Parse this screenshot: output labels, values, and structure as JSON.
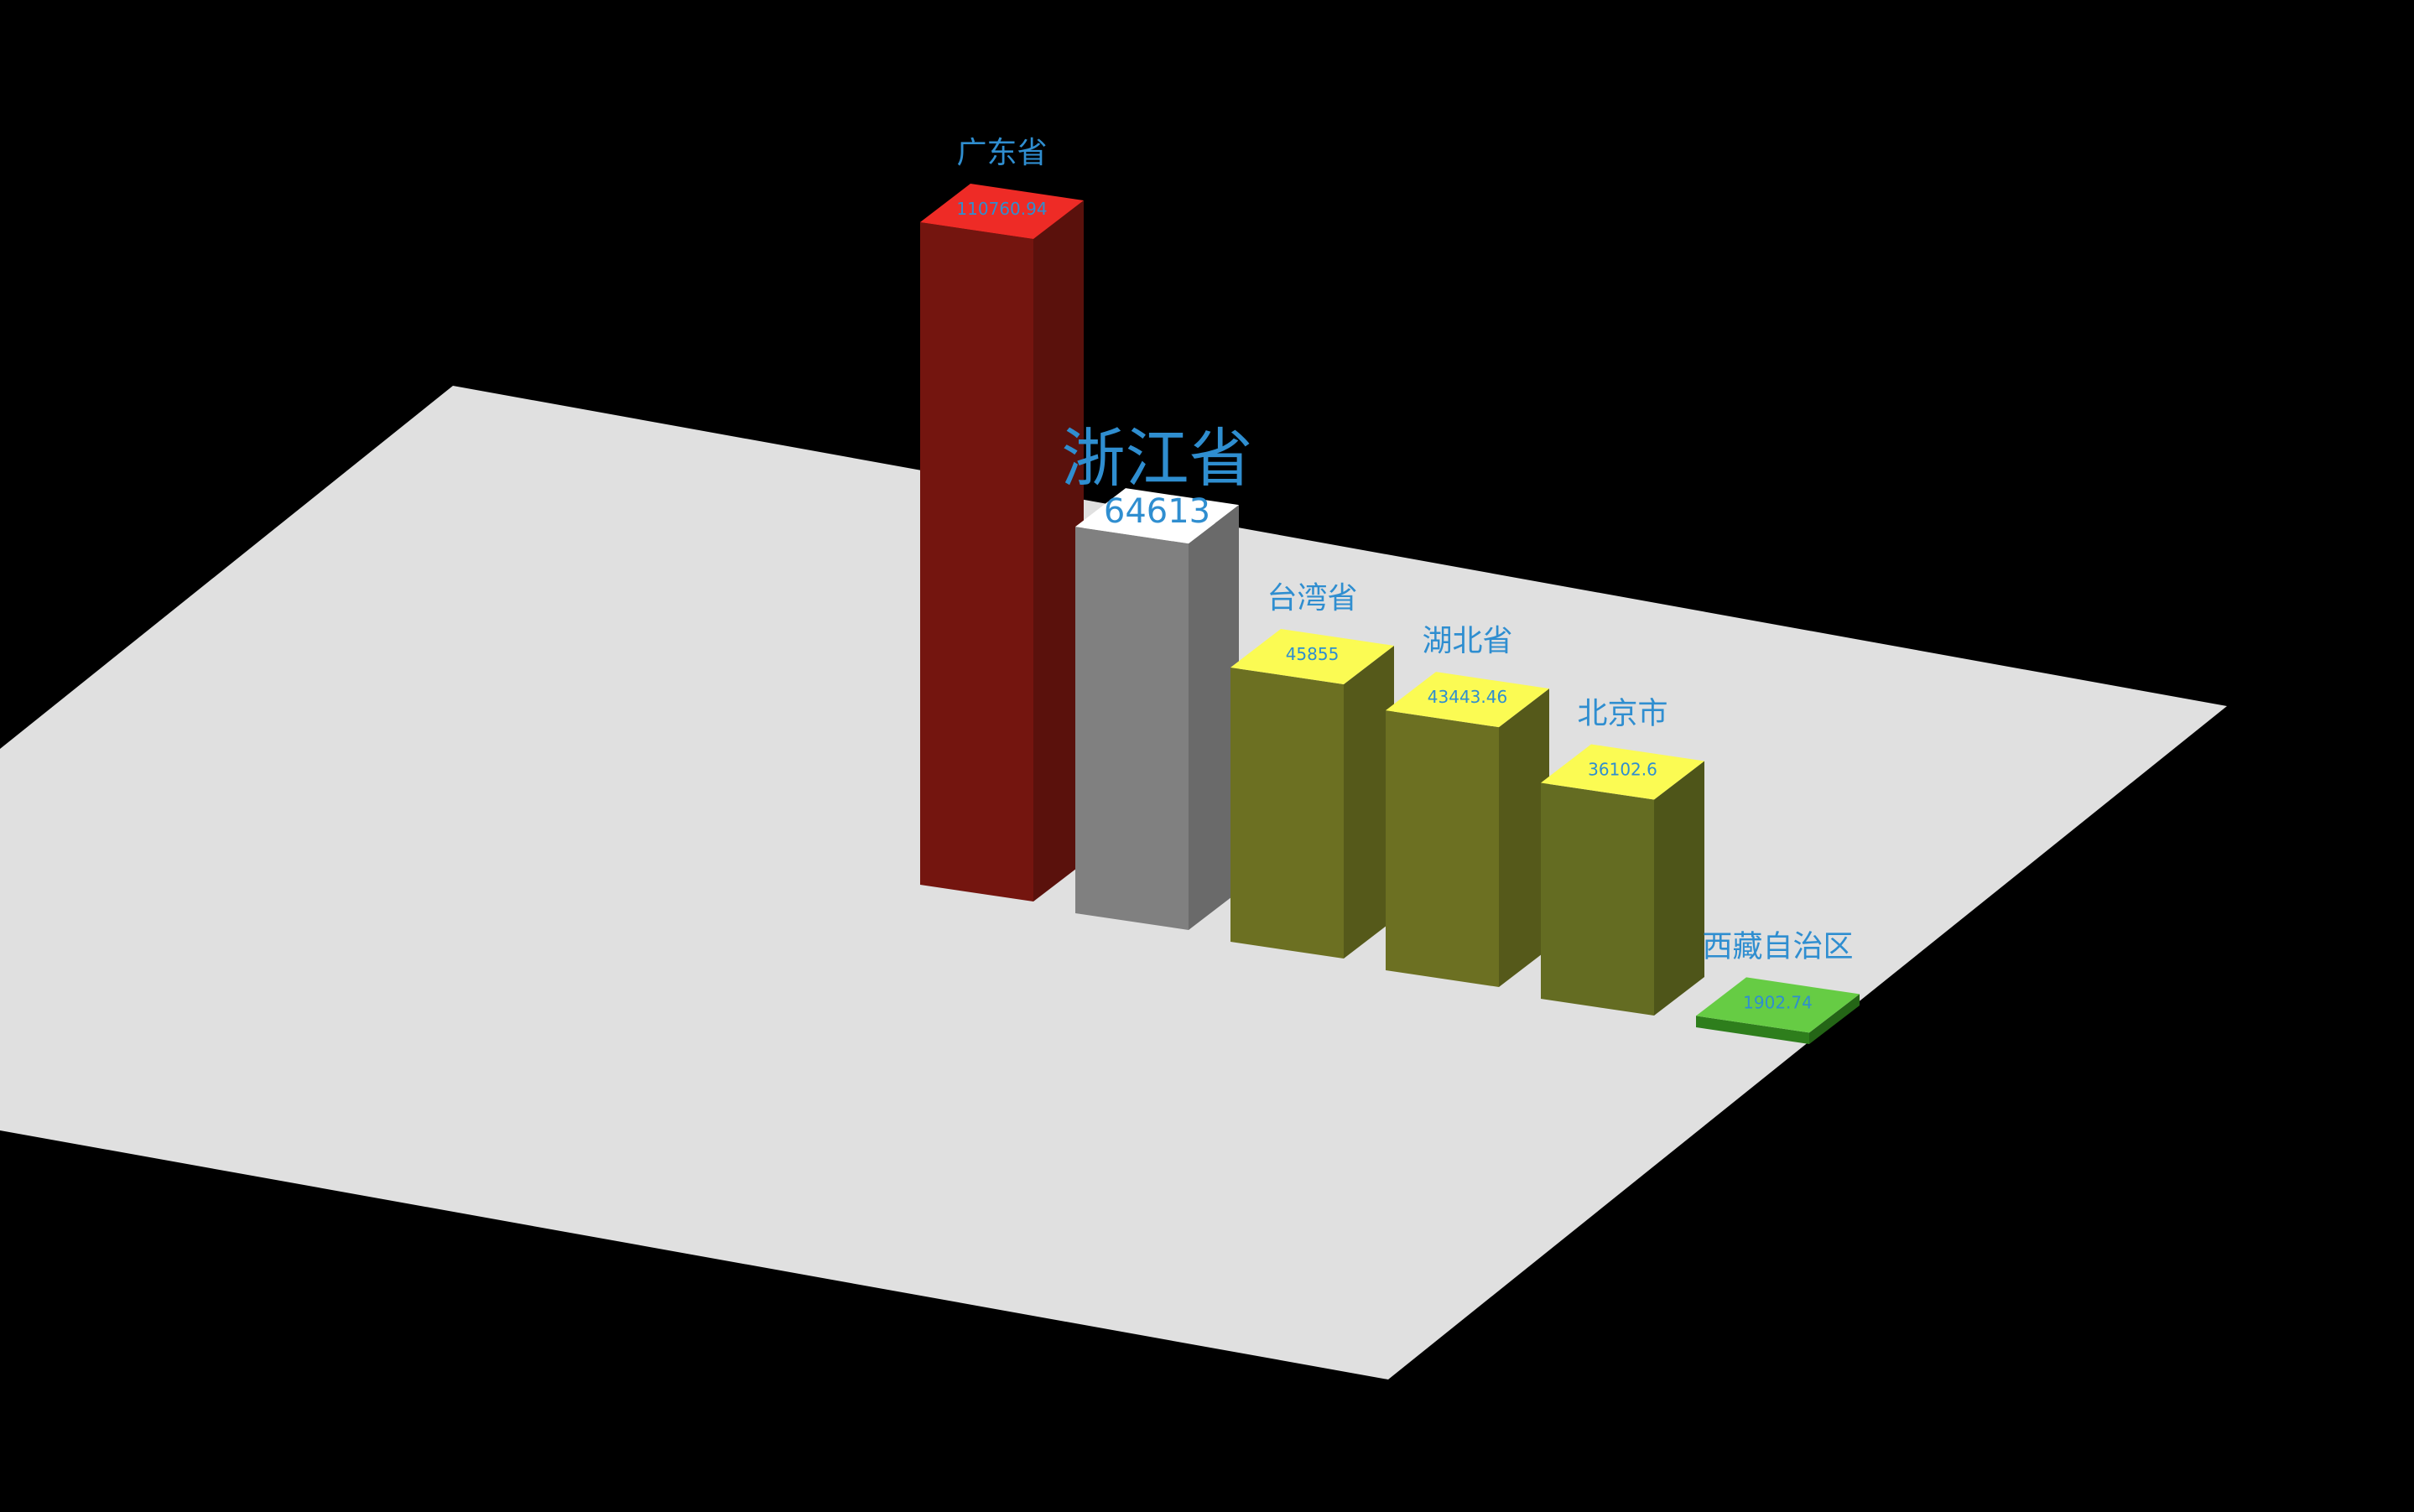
{
  "chart_data": {
    "type": "bar",
    "categories": [
      "广东省",
      "浙江省",
      "台湾省",
      "湖北省",
      "北京市",
      "西藏自治区"
    ],
    "values": [
      110760.94,
      64613,
      45855,
      43443.46,
      36102.6,
      1902.74
    ],
    "value_labels": [
      "110760.94",
      "64613",
      "45855",
      "43443.46",
      "36102.6",
      "1902.74"
    ],
    "highlighted": "浙江省",
    "colors": {
      "top": [
        "#ee2b26",
        "#ffffff",
        "#fbfb53",
        "#fbfb53",
        "#fbfb53",
        "#66cc44"
      ],
      "front": [
        "#74150f",
        "#808080",
        "#6c7022",
        "#6c7022",
        "#646c22",
        "#2e7e1c"
      ],
      "side": [
        "#5a110c",
        "#6a6a6a",
        "#55591a",
        "#55591a",
        "#4e5519",
        "#246516"
      ],
      "floor": "#e0e0e0",
      "background": "#000000",
      "label": "#2f8ed0"
    },
    "grid": false,
    "legend": "none"
  }
}
